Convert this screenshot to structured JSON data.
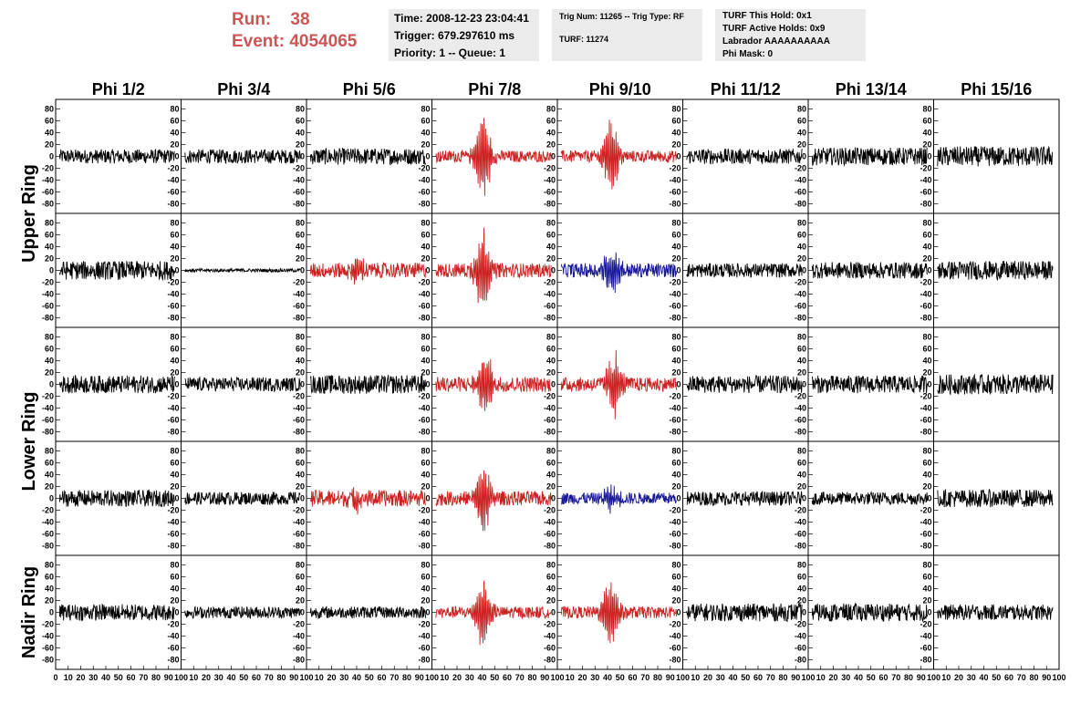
{
  "header": {
    "run_label": "Run:",
    "run_value": "38",
    "event_label": "Event:",
    "event_value": "4054065",
    "time": "Time: 2008-12-23 23:04:41",
    "trigger": "Trigger: 679.297610 ms",
    "priority": "Priority: 1 -- Queue: 1",
    "trig_num": "Trig Num: 11265 -- Trig Type: RF",
    "turf": "TURF: 11274",
    "turf_this_hold": "TURF This Hold: 0x1",
    "turf_active_holds": "TURF Active Holds: 0x9",
    "labrador": "Labrador AAAAAAAAAA",
    "phi_mask": "Phi Mask: 0"
  },
  "colors": {
    "normal": "#000000",
    "triggered_hpol": "#cc2222",
    "triggered_vpol": "#1a1a99",
    "header_text": "#cc5555",
    "info_box": "#ebebeb"
  },
  "chart_data": {
    "type": "line",
    "columns": [
      "Phi 1/2",
      "Phi 3/4",
      "Phi 5/6",
      "Phi 7/8",
      "Phi 9/10",
      "Phi 11/12",
      "Phi 13/14",
      "Phi 15/16"
    ],
    "row_labels": [
      "Upper Ring",
      "Lower Ring",
      "Nadir Ring"
    ],
    "ylim": [
      -90,
      90
    ],
    "yticks": [
      -80,
      -60,
      -40,
      -20,
      0,
      20,
      40,
      60,
      80
    ],
    "xlim": [
      0,
      100
    ],
    "xticks": [
      0,
      10,
      20,
      30,
      40,
      50,
      60,
      70,
      80,
      90,
      100
    ],
    "rows": [
      [
        {
          "color": "normal",
          "amp": 12,
          "burst": 0,
          "center": 0
        },
        {
          "color": "normal",
          "amp": 12,
          "burst": 0,
          "center": 0
        },
        {
          "color": "normal",
          "amp": 14,
          "burst": 0,
          "center": 0
        },
        {
          "color": "triggered_hpol",
          "amp": 10,
          "burst": 75,
          "center": 40
        },
        {
          "color": "triggered_hpol",
          "amp": 10,
          "burst": 70,
          "center": 42
        },
        {
          "color": "normal",
          "amp": 13,
          "burst": 0,
          "center": 0
        },
        {
          "color": "normal",
          "amp": 15,
          "burst": 0,
          "center": 0
        },
        {
          "color": "normal",
          "amp": 17,
          "burst": 0,
          "center": 0
        }
      ],
      [
        {
          "color": "normal",
          "amp": 16,
          "burst": 0,
          "center": 0
        },
        {
          "color": "normal",
          "amp": 3,
          "burst": 0,
          "center": 0
        },
        {
          "color": "triggered_hpol",
          "amp": 13,
          "burst": 18,
          "center": 40
        },
        {
          "color": "triggered_hpol",
          "amp": 12,
          "burst": 68,
          "center": 40
        },
        {
          "color": "triggered_vpol",
          "amp": 12,
          "burst": 42,
          "center": 43
        },
        {
          "color": "normal",
          "amp": 12,
          "burst": 0,
          "center": 0
        },
        {
          "color": "normal",
          "amp": 14,
          "burst": 0,
          "center": 0
        },
        {
          "color": "normal",
          "amp": 16,
          "burst": 0,
          "center": 0
        }
      ],
      [
        {
          "color": "normal",
          "amp": 15,
          "burst": 0,
          "center": 0
        },
        {
          "color": "normal",
          "amp": 12,
          "burst": 0,
          "center": 0
        },
        {
          "color": "normal",
          "amp": 16,
          "burst": 0,
          "center": 0
        },
        {
          "color": "triggered_hpol",
          "amp": 13,
          "burst": 55,
          "center": 42
        },
        {
          "color": "triggered_hpol",
          "amp": 12,
          "burst": 52,
          "center": 45
        },
        {
          "color": "normal",
          "amp": 15,
          "burst": 0,
          "center": 0
        },
        {
          "color": "normal",
          "amp": 15,
          "burst": 0,
          "center": 0
        },
        {
          "color": "normal",
          "amp": 17,
          "burst": 0,
          "center": 0
        }
      ],
      [
        {
          "color": "normal",
          "amp": 14,
          "burst": 0,
          "center": 0
        },
        {
          "color": "normal",
          "amp": 11,
          "burst": 0,
          "center": 0
        },
        {
          "color": "triggered_hpol",
          "amp": 14,
          "burst": 15,
          "center": 40
        },
        {
          "color": "triggered_hpol",
          "amp": 12,
          "burst": 65,
          "center": 40
        },
        {
          "color": "triggered_vpol",
          "amp": 10,
          "burst": 20,
          "center": 42
        },
        {
          "color": "normal",
          "amp": 12,
          "burst": 0,
          "center": 0
        },
        {
          "color": "normal",
          "amp": 11,
          "burst": 0,
          "center": 0
        },
        {
          "color": "normal",
          "amp": 15,
          "burst": 0,
          "center": 0
        }
      ],
      [
        {
          "color": "normal",
          "amp": 14,
          "burst": 0,
          "center": 0
        },
        {
          "color": "normal",
          "amp": 10,
          "burst": 0,
          "center": 0
        },
        {
          "color": "normal",
          "amp": 10,
          "burst": 0,
          "center": 0
        },
        {
          "color": "triggered_hpol",
          "amp": 10,
          "burst": 60,
          "center": 40
        },
        {
          "color": "triggered_hpol",
          "amp": 10,
          "burst": 62,
          "center": 42
        },
        {
          "color": "normal",
          "amp": 15,
          "burst": 0,
          "center": 0
        },
        {
          "color": "normal",
          "amp": 15,
          "burst": 0,
          "center": 0
        },
        {
          "color": "normal",
          "amp": 13,
          "burst": 0,
          "center": 0
        }
      ]
    ]
  }
}
